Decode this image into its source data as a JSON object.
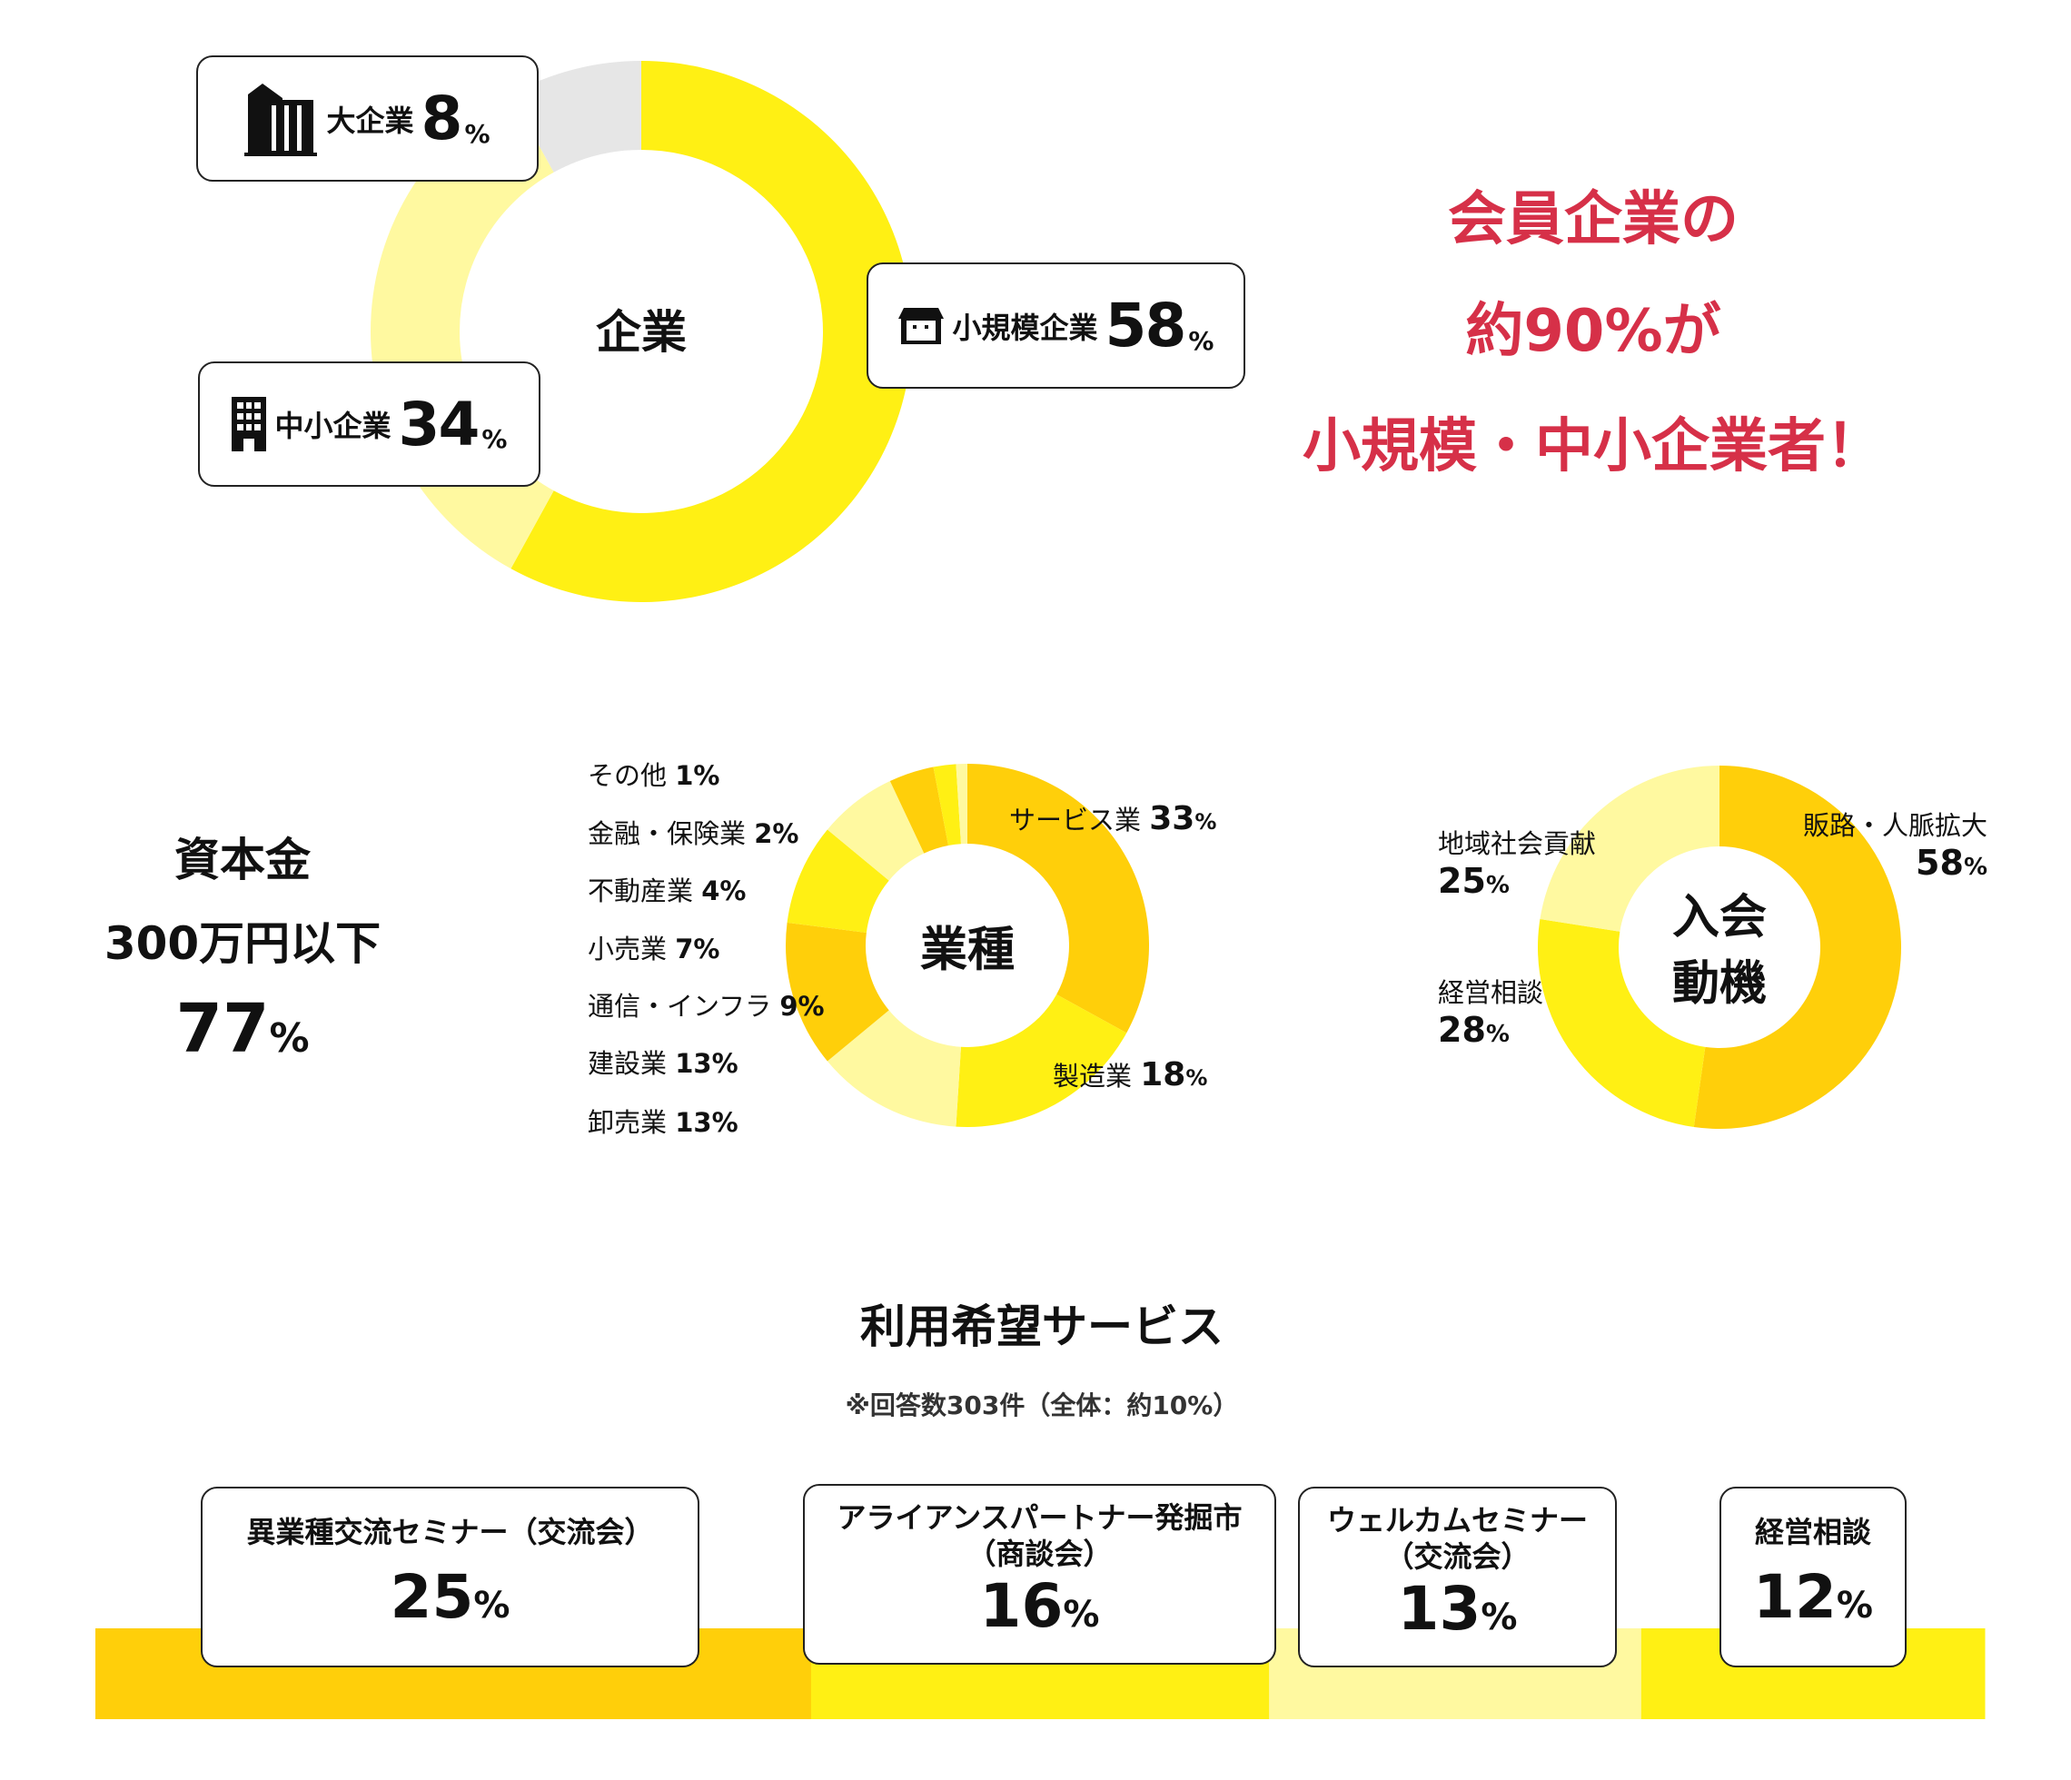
{
  "colors": {
    "dark": "#FFCF0A",
    "bright": "#FFF014",
    "light": "#FFF9A0",
    "gray": "#E6E6E6",
    "accent": "#D63048"
  },
  "chart_data": [
    {
      "type": "pie",
      "title": "企業",
      "series": [
        {
          "name": "小規模企業",
          "value": 58,
          "color": "#FFF014"
        },
        {
          "name": "中小企業",
          "value": 34,
          "color": "#FFF9A0"
        },
        {
          "name": "大企業",
          "value": 8,
          "color": "#E6E6E6"
        }
      ]
    },
    {
      "type": "pie",
      "title": "業種",
      "series": [
        {
          "name": "サービス業",
          "value": 33,
          "color": "#FFCF0A"
        },
        {
          "name": "製造業",
          "value": 18,
          "color": "#FFF014"
        },
        {
          "name": "卸売業",
          "value": 13,
          "color": "#FFF9A0"
        },
        {
          "name": "建設業",
          "value": 13,
          "color": "#FFCF0A"
        },
        {
          "name": "通信・インフラ",
          "value": 9,
          "color": "#FFF014"
        },
        {
          "name": "小売業",
          "value": 7,
          "color": "#FFF9A0"
        },
        {
          "name": "不動産業",
          "value": 4,
          "color": "#FFCF0A"
        },
        {
          "name": "金融・保険業",
          "value": 2,
          "color": "#FFF014"
        },
        {
          "name": "その他",
          "value": 1,
          "color": "#FFF9A0"
        }
      ]
    },
    {
      "type": "pie",
      "title": "入会動機",
      "series": [
        {
          "name": "販路・人脈拡大",
          "value": 58,
          "color": "#FFCF0A"
        },
        {
          "name": "経営相談",
          "value": 28,
          "color": "#FFF014"
        },
        {
          "name": "地域社会貢献",
          "value": 25,
          "color": "#FFF9A0"
        }
      ]
    },
    {
      "type": "bar",
      "title": "利用希望サービス",
      "note": "※回答数303件（全体：約10%）",
      "series": [
        {
          "name": "異業種交流セミナー（交流会）",
          "value": 25,
          "color": "#FFCF0A"
        },
        {
          "name": "アライアンスパートナー発掘市（商談会）",
          "value": 16,
          "color": "#FFF014"
        },
        {
          "name": "ウェルカムセミナー（交流会）",
          "value": 13,
          "color": "#FFF9A0"
        },
        {
          "name": "経営相談",
          "value": 12,
          "color": "#FFF014"
        }
      ]
    }
  ],
  "company": {
    "center": "企業",
    "large": {
      "label": "大企業",
      "value": "8",
      "unit": "%",
      "icon": "office-tower-icon"
    },
    "small": {
      "label": "小規模企業",
      "value": "58",
      "unit": "%",
      "icon": "shop-icon"
    },
    "mid": {
      "label": "中小企業",
      "value": "34",
      "unit": "%",
      "icon": "building-icon"
    }
  },
  "headline": [
    "会員企業の",
    "約90%が",
    "小規模・中小企業者！"
  ],
  "capital": {
    "title": "資本金",
    "condition": "300万円以下",
    "value": "77",
    "unit": "%"
  },
  "industry": {
    "center": "業種",
    "left_labels": [
      {
        "name": "その他",
        "value": "1%"
      },
      {
        "name": "金融・保険業",
        "value": "2%"
      },
      {
        "name": "不動産業",
        "value": "4%"
      },
      {
        "name": "小売業",
        "value": "7%"
      },
      {
        "name": "通信・インフラ",
        "value": "9%"
      },
      {
        "name": "建設業",
        "value": "13%"
      },
      {
        "name": "卸売業",
        "value": "13%"
      }
    ],
    "service": {
      "name": "サービス業",
      "value": "33",
      "unit": "%"
    },
    "manufacturing": {
      "name": "製造業",
      "value": "18",
      "unit": "%"
    }
  },
  "motive": {
    "center1": "入会",
    "center2": "動機",
    "sales": {
      "name": "販路・人脈拡大",
      "value": "58",
      "unit": "%"
    },
    "community": {
      "name": "地域社会貢献",
      "value": "25",
      "unit": "%"
    },
    "consult": {
      "name": "経営相談",
      "value": "28",
      "unit": "%"
    }
  },
  "services": {
    "title": "利用希望サービス",
    "note": "※回答数303件（全体：約10%）",
    "cards": [
      {
        "line1": "異業種交流セミナー（交流会）",
        "line2": "",
        "value": "25",
        "unit": "%"
      },
      {
        "line1": "アライアンスパートナー発掘市",
        "line2": "（商談会）",
        "value": "16",
        "unit": "%"
      },
      {
        "line1": "ウェルカムセミナー",
        "line2": "（交流会）",
        "value": "13",
        "unit": "%"
      },
      {
        "line1": "経営相談",
        "line2": "",
        "value": "12",
        "unit": "%"
      }
    ]
  }
}
